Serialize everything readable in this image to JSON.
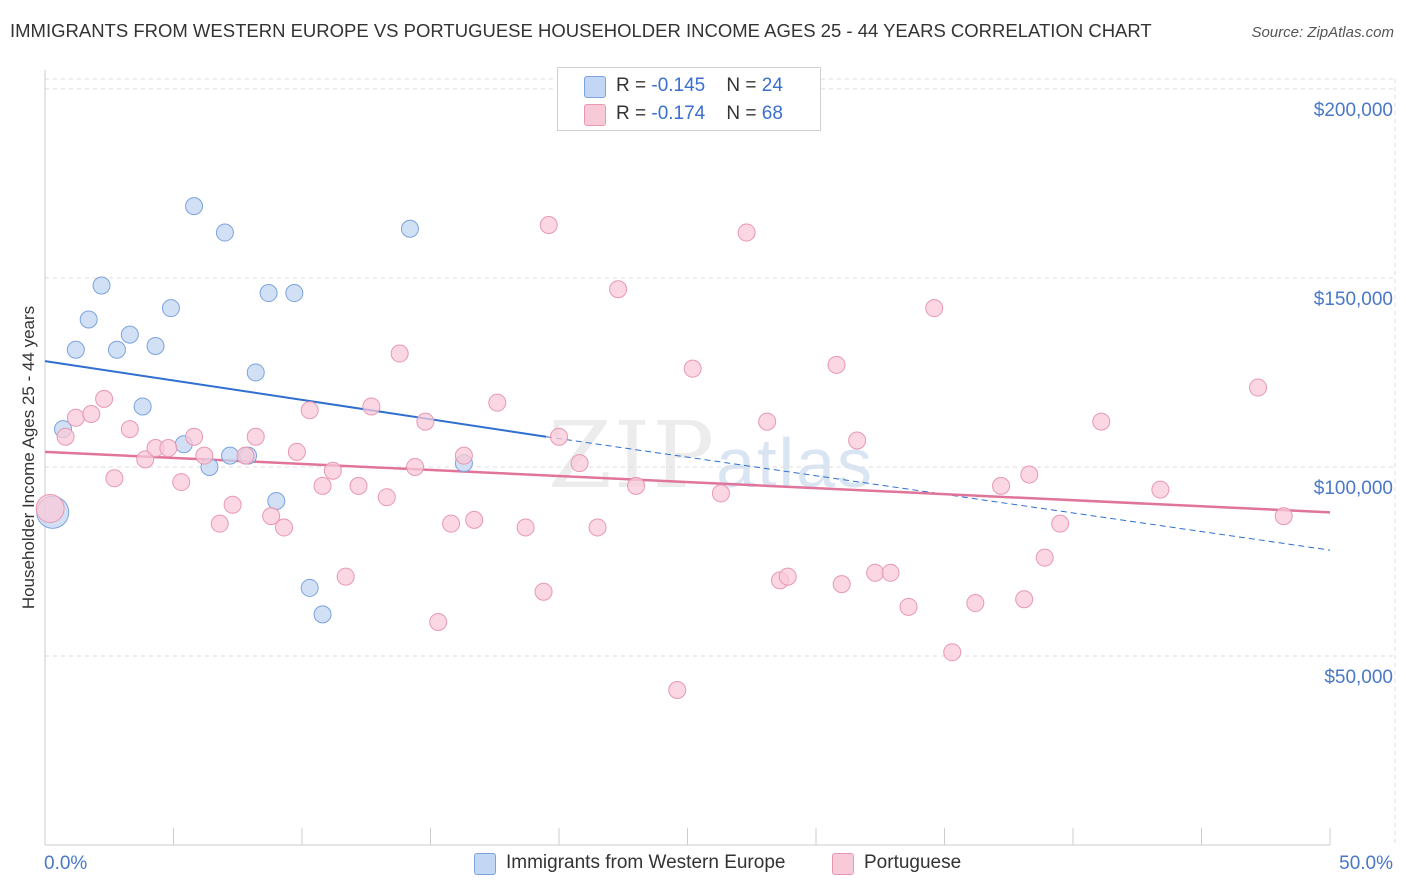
{
  "title": "IMMIGRANTS FROM WESTERN EUROPE VS PORTUGUESE HOUSEHOLDER INCOME AGES 25 - 44 YEARS CORRELATION CHART",
  "source": "Source: ZipAtlas.com",
  "watermark": {
    "zip": "ZIP",
    "atlas": "atlas"
  },
  "legend": {
    "series1": {
      "r_label": "R = ",
      "r_value": "-0.145",
      "n_label": "N = ",
      "n_value": "24"
    },
    "series2": {
      "r_label": "R = ",
      "r_value": "-0.174",
      "n_label": "N = ",
      "n_value": "68"
    }
  },
  "colors": {
    "blue_fill": "#c3d6f3",
    "blue_stroke": "#7ba3de",
    "blue_line": "#2f6fcf",
    "pink_fill": "#f8cad8",
    "pink_stroke": "#e898b2",
    "pink_line": "#e0749a",
    "grid": "#dddddd",
    "axis_text": "#4a78c8"
  },
  "chart_data": {
    "type": "scatter",
    "title": "IMMIGRANTS FROM WESTERN EUROPE VS PORTUGUESE HOUSEHOLDER INCOME AGES 25 - 44 YEARS CORRELATION CHART",
    "xlabel": "",
    "ylabel": "Householder Income Ages 25 - 44 years",
    "xlim": [
      0,
      50
    ],
    "ylim": [
      0,
      205000
    ],
    "x_tick_labels": [
      "0.0%",
      "50.0%"
    ],
    "y_ticks": [
      50000,
      100000,
      150000,
      200000
    ],
    "y_tick_labels": [
      "$50,000",
      "$100,000",
      "$150,000",
      "$200,000"
    ],
    "grid": true,
    "series": [
      {
        "name": "Immigrants from Western Europe",
        "color": "#c3d6f3",
        "points": [
          [
            0.3,
            88000
          ],
          [
            0.7,
            110000
          ],
          [
            1.2,
            131000
          ],
          [
            1.7,
            139000
          ],
          [
            2.2,
            148000
          ],
          [
            2.8,
            131000
          ],
          [
            3.3,
            135000
          ],
          [
            3.8,
            116000
          ],
          [
            4.3,
            132000
          ],
          [
            4.9,
            142000
          ],
          [
            5.4,
            106000
          ],
          [
            5.8,
            169000
          ],
          [
            6.4,
            100000
          ],
          [
            7.0,
            162000
          ],
          [
            7.2,
            103000
          ],
          [
            7.9,
            103000
          ],
          [
            8.2,
            125000
          ],
          [
            8.7,
            146000
          ],
          [
            9.0,
            91000
          ],
          [
            9.7,
            146000
          ],
          [
            10.3,
            68000
          ],
          [
            10.8,
            61000
          ],
          [
            14.2,
            163000
          ],
          [
            16.3,
            101000
          ]
        ],
        "trend": {
          "x": [
            0,
            19.5
          ],
          "y": [
            128000,
            108000
          ],
          "dashed_to": [
            50,
            78000
          ]
        }
      },
      {
        "name": "Portuguese",
        "color": "#f8cad8",
        "points": [
          [
            0.2,
            89000
          ],
          [
            0.8,
            108000
          ],
          [
            1.2,
            113000
          ],
          [
            1.8,
            114000
          ],
          [
            2.3,
            118000
          ],
          [
            2.7,
            97000
          ],
          [
            3.3,
            110000
          ],
          [
            3.9,
            102000
          ],
          [
            4.3,
            105000
          ],
          [
            4.8,
            105000
          ],
          [
            5.3,
            96000
          ],
          [
            5.8,
            108000
          ],
          [
            6.2,
            103000
          ],
          [
            6.8,
            85000
          ],
          [
            7.3,
            90000
          ],
          [
            7.8,
            103000
          ],
          [
            8.2,
            108000
          ],
          [
            8.8,
            87000
          ],
          [
            9.3,
            84000
          ],
          [
            9.8,
            104000
          ],
          [
            10.3,
            115000
          ],
          [
            10.8,
            95000
          ],
          [
            11.2,
            99000
          ],
          [
            11.7,
            71000
          ],
          [
            12.2,
            95000
          ],
          [
            12.7,
            116000
          ],
          [
            13.3,
            92000
          ],
          [
            13.8,
            130000
          ],
          [
            14.4,
            100000
          ],
          [
            14.8,
            112000
          ],
          [
            15.3,
            59000
          ],
          [
            15.8,
            85000
          ],
          [
            16.3,
            103000
          ],
          [
            16.7,
            86000
          ],
          [
            17.6,
            117000
          ],
          [
            18.7,
            84000
          ],
          [
            19.4,
            67000
          ],
          [
            19.6,
            164000
          ],
          [
            20.0,
            108000
          ],
          [
            20.8,
            101000
          ],
          [
            21.5,
            84000
          ],
          [
            22.3,
            147000
          ],
          [
            23.0,
            95000
          ],
          [
            24.6,
            41000
          ],
          [
            25.2,
            126000
          ],
          [
            26.3,
            93000
          ],
          [
            27.3,
            162000
          ],
          [
            28.6,
            70000
          ],
          [
            28.9,
            71000
          ],
          [
            28.1,
            112000
          ],
          [
            30.8,
            127000
          ],
          [
            31.0,
            69000
          ],
          [
            31.6,
            107000
          ],
          [
            32.3,
            72000
          ],
          [
            32.9,
            72000
          ],
          [
            33.6,
            63000
          ],
          [
            34.6,
            142000
          ],
          [
            35.3,
            51000
          ],
          [
            36.2,
            64000
          ],
          [
            37.2,
            95000
          ],
          [
            38.1,
            65000
          ],
          [
            38.3,
            98000
          ],
          [
            38.9,
            76000
          ],
          [
            39.5,
            85000
          ],
          [
            41.1,
            112000
          ],
          [
            43.4,
            94000
          ],
          [
            47.2,
            121000
          ],
          [
            48.2,
            87000
          ]
        ],
        "trend": {
          "x": [
            0,
            50
          ],
          "y": [
            104000,
            88000
          ]
        }
      }
    ]
  }
}
